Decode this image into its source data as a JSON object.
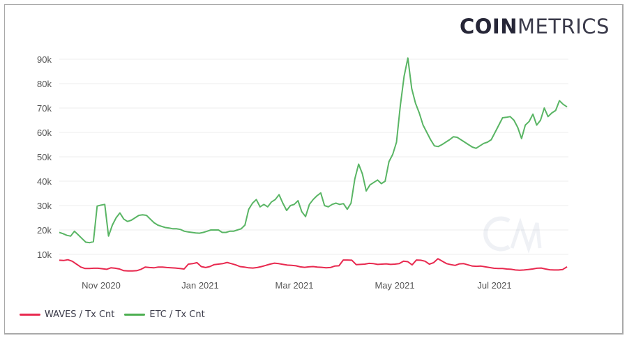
{
  "logo": {
    "bold": "COIN",
    "light": "METRICS"
  },
  "watermark": "CM",
  "legend": [
    {
      "label": "WAVES / Tx Cnt",
      "color": "#e8294f"
    },
    {
      "label": "ETC / Tx Cnt",
      "color": "#4caf50"
    }
  ],
  "chart_data": {
    "type": "line",
    "title": "",
    "xlabel": "",
    "ylabel": "",
    "ylim": [
      0,
      95000
    ],
    "yticks": [
      "10k",
      "20k",
      "30k",
      "40k",
      "50k",
      "60k",
      "70k",
      "80k",
      "90k"
    ],
    "ytick_values": [
      10000,
      20000,
      30000,
      40000,
      50000,
      60000,
      70000,
      80000,
      90000
    ],
    "xticks": [
      "Nov 2020",
      "Jan 2021",
      "Mar 2021",
      "May 2021",
      "Jul 2021"
    ],
    "x_range": [
      "2020-10-06",
      "2021-08-17"
    ],
    "grid": true,
    "legend_position": "bottom-left",
    "series": [
      {
        "name": "WAVES / Tx Cnt",
        "color": "#e8294f",
        "values": [
          7600,
          7500,
          7800,
          7200,
          6000,
          4800,
          4200,
          4200,
          4300,
          4300,
          4100,
          3900,
          4500,
          4300,
          4000,
          3300,
          3200,
          3200,
          3300,
          3900,
          4800,
          4600,
          4500,
          4800,
          4800,
          4600,
          4500,
          4400,
          4200,
          4000,
          6000,
          6200,
          6600,
          5000,
          4600,
          5000,
          5800,
          6000,
          6200,
          6700,
          6200,
          5700,
          5000,
          4800,
          4500,
          4400,
          4600,
          5000,
          5500,
          6000,
          6400,
          6200,
          5900,
          5600,
          5500,
          5300,
          4900,
          4700,
          4900,
          5000,
          4800,
          4700,
          4500,
          4600,
          5200,
          5300,
          7700,
          7700,
          7600,
          5800,
          5900,
          6000,
          6300,
          6200,
          5900,
          6000,
          6100,
          5900,
          6000,
          6200,
          7200,
          7000,
          5700,
          7700,
          7600,
          7200,
          6000,
          6600,
          8200,
          7200,
          6200,
          5800,
          5500,
          6100,
          6200,
          5700,
          5200,
          5100,
          5200,
          4900,
          4600,
          4300,
          4200,
          4200,
          4000,
          3900,
          3600,
          3500,
          3600,
          3800,
          4000,
          4300,
          4400,
          4000,
          3700,
          3600,
          3600,
          3800,
          4900
        ]
      },
      {
        "name": "ETC / Tx Cnt",
        "color": "#4caf50",
        "values": [
          19000,
          18500,
          17800,
          17500,
          19500,
          18000,
          16500,
          15000,
          14800,
          15200,
          29800,
          30200,
          30500,
          17500,
          22000,
          25000,
          27000,
          24500,
          23500,
          24000,
          25000,
          26000,
          26200,
          26000,
          24500,
          23000,
          22000,
          21500,
          21000,
          20800,
          20500,
          20500,
          20200,
          19500,
          19200,
          19000,
          18800,
          18700,
          19000,
          19500,
          20000,
          20000,
          20000,
          19000,
          19000,
          19500,
          19500,
          20000,
          20500,
          22000,
          28500,
          31000,
          32500,
          29500,
          30500,
          29500,
          31500,
          32500,
          34500,
          31000,
          28000,
          30000,
          30500,
          32000,
          27500,
          25500,
          30500,
          32500,
          34000,
          35200,
          30000,
          29500,
          30500,
          31000,
          30500,
          30800,
          28500,
          31000,
          41000,
          47000,
          43000,
          36000,
          38500,
          39500,
          40500,
          39000,
          40000,
          48000,
          51000,
          56000,
          71000,
          83000,
          90500,
          78000,
          72000,
          68000,
          63000,
          60000,
          57000,
          54500,
          54200,
          55000,
          56000,
          57000,
          58200,
          58000,
          57000,
          56000,
          55000,
          54000,
          53500,
          54500,
          55500,
          56000,
          57000,
          60000,
          63000,
          66000,
          66200,
          66500,
          65000,
          62000,
          57500,
          63000,
          64500,
          67500,
          63000,
          65000,
          70000,
          66500,
          68000,
          69000,
          73000,
          71500,
          70500
        ]
      }
    ]
  }
}
